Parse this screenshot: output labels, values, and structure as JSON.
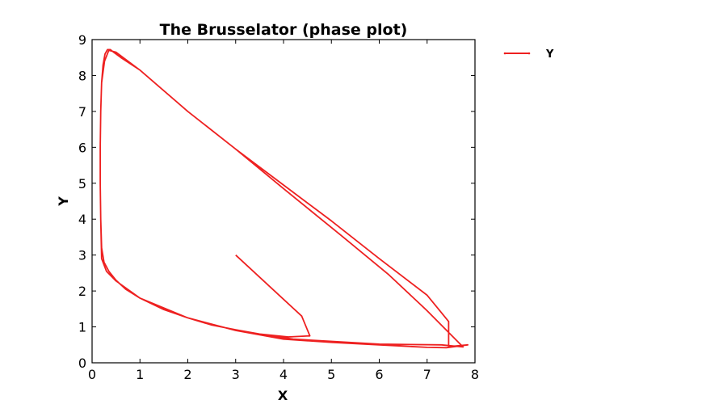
{
  "chart_data": {
    "type": "line",
    "title": "The Brusselator (phase plot)",
    "xlabel": "X",
    "ylabel": "Y",
    "xlim": [
      0,
      8
    ],
    "ylim": [
      0,
      9
    ],
    "xticks": [
      0,
      1,
      2,
      3,
      4,
      5,
      6,
      7,
      8
    ],
    "yticks": [
      0,
      1,
      2,
      3,
      4,
      5,
      6,
      7,
      8,
      9
    ],
    "legend_position": "outside-right-top",
    "grid": false,
    "series": [
      {
        "name": "Y",
        "color": "#ee2020",
        "x": [
          3.0,
          4.38,
          4.55,
          4.1,
          3.5,
          3.0,
          2.5,
          2.0,
          1.5,
          1.0,
          0.7,
          0.5,
          0.35,
          0.25,
          0.2,
          0.18,
          0.17,
          0.17,
          0.18,
          0.2,
          0.23,
          0.27,
          0.32,
          0.38,
          0.45,
          0.6,
          1.0,
          2.0,
          3.0,
          4.0,
          5.0,
          6.0,
          7.0,
          7.45,
          7.45,
          7.85,
          7.4,
          7.0,
          6.0,
          5.0,
          4.0,
          3.0,
          2.0,
          1.0,
          0.5,
          0.3,
          0.2,
          0.18,
          0.17,
          0.17,
          0.18,
          0.2,
          0.26,
          0.35,
          0.5,
          1.0,
          2.0,
          3.0,
          4.0,
          5.2,
          6.2,
          7.0,
          7.75,
          7.3,
          6.0,
          4.2,
          3.0,
          2.0,
          1.0
        ],
        "y": [
          3.0,
          1.3,
          0.75,
          0.72,
          0.8,
          0.92,
          1.05,
          1.25,
          1.48,
          1.8,
          2.05,
          2.3,
          2.55,
          2.8,
          3.2,
          4.0,
          5.0,
          6.0,
          7.0,
          7.8,
          8.3,
          8.6,
          8.72,
          8.72,
          8.65,
          8.5,
          8.15,
          7.0,
          5.95,
          4.95,
          3.95,
          2.9,
          1.88,
          1.15,
          0.45,
          0.5,
          0.42,
          0.43,
          0.5,
          0.57,
          0.66,
          0.9,
          1.25,
          1.8,
          2.28,
          2.55,
          2.9,
          4.0,
          5.0,
          6.0,
          7.0,
          7.8,
          8.4,
          8.7,
          8.65,
          8.15,
          7.0,
          5.95,
          4.85,
          3.55,
          2.45,
          1.45,
          0.44,
          0.5,
          0.52,
          0.66,
          0.9,
          1.25,
          1.8
        ]
      }
    ]
  }
}
